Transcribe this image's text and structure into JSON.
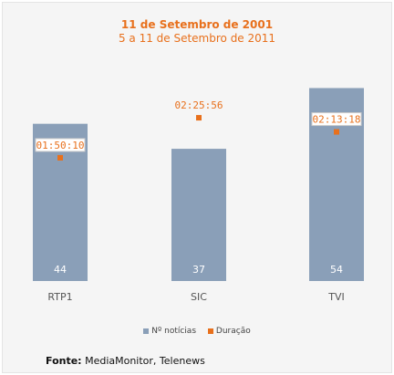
{
  "colors": {
    "bar": "#8a9fb8",
    "marker": "#e8701c",
    "title": "#e8701c"
  },
  "chart_data": {
    "type": "bar",
    "title": "11 de Setembro de 2001",
    "subtitle": "5 a 11 de Setembro de 2011",
    "categories": [
      "RTP1",
      "SIC",
      "TVI"
    ],
    "series": [
      {
        "name": "Nº notícias",
        "values": [
          44,
          37,
          54
        ]
      },
      {
        "name": "Duração",
        "values": [
          "01:50:10",
          "02:25:56",
          "02:13:18"
        ],
        "seconds": [
          6610,
          8756,
          7998
        ]
      }
    ],
    "ylim": [
      0,
      60
    ],
    "duration_ylim": [
      0,
      11500
    ],
    "grid": false,
    "legend": "bottom"
  },
  "legend": {
    "items": [
      "Nº notícias",
      "Duração"
    ]
  },
  "source": {
    "label": "Fonte:",
    "text": "MediaMonitor, Telenews"
  }
}
